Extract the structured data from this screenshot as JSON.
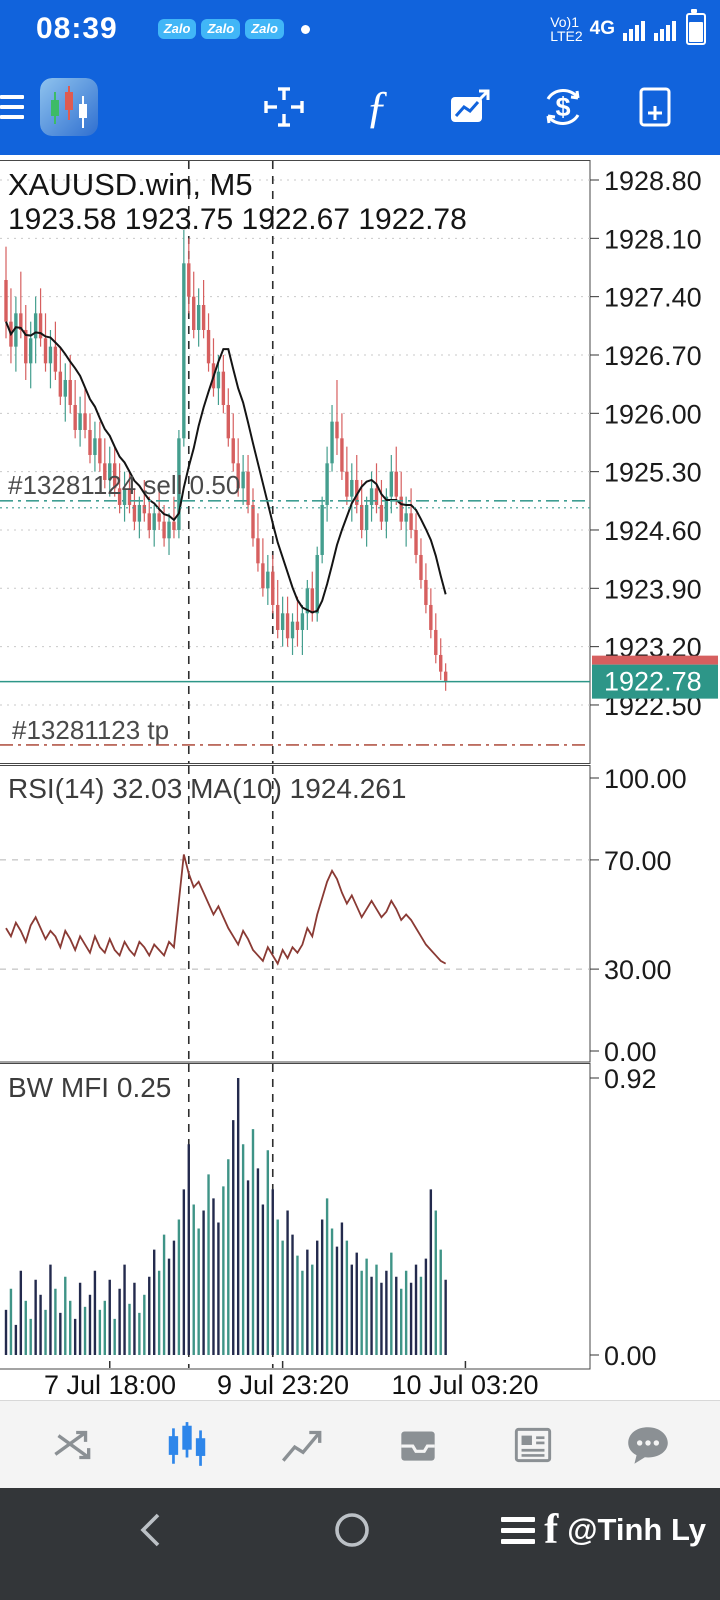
{
  "status_bar": {
    "time": "08:39",
    "zalo_badges": [
      "Zalo",
      "Zalo",
      "Zalo"
    ],
    "carrier_line1": "Vo)1",
    "carrier_line2": "LTE2",
    "network_type": "4G"
  },
  "toolbar": {
    "fx_glyph": "ƒ",
    "dollar_glyph": "$"
  },
  "chart": {
    "symbol": "XAUUSD.win, M5",
    "ohlc_line": "1923.58 1923.75 1922.67 1922.78",
    "open": "1923.58",
    "high": "1923.75",
    "low": "1922.67",
    "close": "1922.78",
    "price_axis": [
      "1928.80",
      "1928.10",
      "1927.40",
      "1926.70",
      "1926.00",
      "1925.30",
      "1924.60",
      "1923.90",
      "1923.20",
      "1922.50"
    ],
    "current_price": "1922.78",
    "position_line": {
      "label": "#13281124 sell 0.50",
      "price": 1924.95
    },
    "tp_line": {
      "label": "#13281123 tp",
      "price": 1922.02
    }
  },
  "rsi_panel": {
    "label": "RSI(14) 32.03 MA(10) 1924.261",
    "axis": [
      "100.00",
      "70.00",
      "30.00",
      "0.00"
    ],
    "levels": [
      70,
      30
    ]
  },
  "mfi_panel": {
    "label": "BW MFI 0.25",
    "axis": [
      "0.92",
      "0.00"
    ]
  },
  "nav_bar": {
    "watermark_logo": "f",
    "watermark": "@Tinh Ly"
  },
  "chart_data": {
    "type": "candlestick",
    "title": "XAUUSD.win, M5",
    "price_axis_top": 1928.8,
    "price_axis_step": 0.7,
    "ma_period": 10,
    "separators": [
      37,
      54
    ],
    "time_labels": [
      {
        "text": "7 Jul 18:00",
        "i": 21
      },
      {
        "text": "9 Jul 23:20",
        "i": 56
      },
      {
        "text": "10 Jul 03:20",
        "i": 93
      }
    ],
    "candles": [
      [
        1927.6,
        1928.0,
        1926.9,
        1927.1
      ],
      [
        1927.1,
        1927.5,
        1926.6,
        1926.8
      ],
      [
        1926.8,
        1927.4,
        1926.5,
        1927.2
      ],
      [
        1927.2,
        1927.7,
        1926.9,
        1927.0
      ],
      [
        1927.0,
        1927.3,
        1926.4,
        1926.6
      ],
      [
        1926.6,
        1927.1,
        1926.3,
        1926.9
      ],
      [
        1926.9,
        1927.4,
        1926.6,
        1927.2
      ],
      [
        1927.2,
        1927.5,
        1926.8,
        1926.9
      ],
      [
        1926.9,
        1927.2,
        1926.5,
        1926.6
      ],
      [
        1926.6,
        1927.0,
        1926.3,
        1926.8
      ],
      [
        1926.8,
        1927.1,
        1926.4,
        1926.5
      ],
      [
        1926.5,
        1926.8,
        1926.1,
        1926.2
      ],
      [
        1926.2,
        1926.6,
        1925.9,
        1926.4
      ],
      [
        1926.4,
        1926.7,
        1926.0,
        1926.1
      ],
      [
        1926.1,
        1926.4,
        1925.7,
        1925.8
      ],
      [
        1925.8,
        1926.2,
        1925.6,
        1926.0
      ],
      [
        1926.0,
        1926.3,
        1925.7,
        1925.8
      ],
      [
        1925.8,
        1926.0,
        1925.4,
        1925.5
      ],
      [
        1925.5,
        1925.9,
        1925.3,
        1925.7
      ],
      [
        1925.7,
        1925.9,
        1925.3,
        1925.4
      ],
      [
        1925.4,
        1925.7,
        1925.1,
        1925.2
      ],
      [
        1925.2,
        1925.6,
        1925.0,
        1925.4
      ],
      [
        1925.4,
        1925.6,
        1925.0,
        1925.1
      ],
      [
        1925.1,
        1925.4,
        1924.8,
        1924.9
      ],
      [
        1924.9,
        1925.3,
        1924.7,
        1925.1
      ],
      [
        1925.1,
        1925.3,
        1924.8,
        1924.9
      ],
      [
        1924.9,
        1925.1,
        1924.6,
        1924.7
      ],
      [
        1924.7,
        1925.0,
        1924.5,
        1924.9
      ],
      [
        1924.9,
        1925.2,
        1924.7,
        1924.8
      ],
      [
        1924.8,
        1925.0,
        1924.5,
        1924.6
      ],
      [
        1924.6,
        1924.9,
        1924.4,
        1924.8
      ],
      [
        1924.8,
        1925.1,
        1924.6,
        1924.7
      ],
      [
        1924.7,
        1924.9,
        1924.4,
        1924.5
      ],
      [
        1924.5,
        1924.8,
        1924.3,
        1924.7
      ],
      [
        1924.7,
        1925.0,
        1924.5,
        1924.6
      ],
      [
        1924.6,
        1925.8,
        1924.5,
        1925.7
      ],
      [
        1925.7,
        1928.2,
        1925.6,
        1927.8
      ],
      [
        1927.8,
        1928.1,
        1927.2,
        1927.4
      ],
      [
        1927.4,
        1927.7,
        1926.9,
        1927.0
      ],
      [
        1927.0,
        1927.5,
        1926.8,
        1927.3
      ],
      [
        1927.3,
        1927.6,
        1926.9,
        1927.0
      ],
      [
        1927.0,
        1927.2,
        1926.5,
        1926.6
      ],
      [
        1926.6,
        1926.9,
        1926.2,
        1926.3
      ],
      [
        1926.3,
        1926.7,
        1926.1,
        1926.5
      ],
      [
        1926.5,
        1926.7,
        1926.0,
        1926.1
      ],
      [
        1926.1,
        1926.3,
        1925.6,
        1925.7
      ],
      [
        1925.7,
        1926.0,
        1925.3,
        1925.4
      ],
      [
        1925.4,
        1925.7,
        1925.0,
        1925.1
      ],
      [
        1925.1,
        1925.5,
        1924.9,
        1925.3
      ],
      [
        1925.3,
        1925.5,
        1924.8,
        1924.9
      ],
      [
        1924.9,
        1925.1,
        1924.4,
        1924.5
      ],
      [
        1924.5,
        1924.8,
        1924.1,
        1924.2
      ],
      [
        1924.2,
        1924.5,
        1923.8,
        1923.9
      ],
      [
        1923.9,
        1924.3,
        1923.7,
        1924.1
      ],
      [
        1924.1,
        1924.3,
        1923.6,
        1923.7
      ],
      [
        1923.7,
        1924.0,
        1923.3,
        1923.4
      ],
      [
        1923.4,
        1923.8,
        1923.2,
        1923.6
      ],
      [
        1923.6,
        1923.8,
        1923.2,
        1923.3
      ],
      [
        1923.3,
        1923.6,
        1923.1,
        1923.5
      ],
      [
        1923.5,
        1923.8,
        1923.2,
        1923.4
      ],
      [
        1923.4,
        1923.7,
        1923.1,
        1923.6
      ],
      [
        1923.6,
        1924.0,
        1923.4,
        1923.9
      ],
      [
        1923.9,
        1924.1,
        1923.5,
        1923.6
      ],
      [
        1923.6,
        1924.4,
        1923.5,
        1924.3
      ],
      [
        1924.3,
        1925.0,
        1924.2,
        1924.9
      ],
      [
        1924.9,
        1925.6,
        1924.7,
        1925.4
      ],
      [
        1925.4,
        1926.1,
        1925.3,
        1925.9
      ],
      [
        1925.9,
        1926.4,
        1925.5,
        1925.7
      ],
      [
        1925.7,
        1926.0,
        1925.2,
        1925.3
      ],
      [
        1925.3,
        1925.6,
        1924.9,
        1925.0
      ],
      [
        1925.0,
        1925.4,
        1924.7,
        1925.2
      ],
      [
        1925.2,
        1925.5,
        1924.8,
        1924.9
      ],
      [
        1924.9,
        1925.2,
        1924.5,
        1924.6
      ],
      [
        1924.6,
        1925.0,
        1924.4,
        1924.9
      ],
      [
        1924.9,
        1925.3,
        1924.7,
        1925.1
      ],
      [
        1925.1,
        1925.4,
        1924.8,
        1924.9
      ],
      [
        1924.9,
        1925.2,
        1924.6,
        1924.7
      ],
      [
        1924.7,
        1925.1,
        1924.5,
        1925.0
      ],
      [
        1925.0,
        1925.5,
        1924.8,
        1925.3
      ],
      [
        1925.3,
        1925.6,
        1924.9,
        1925.0
      ],
      [
        1925.0,
        1925.3,
        1924.6,
        1924.7
      ],
      [
        1924.7,
        1925.0,
        1924.4,
        1924.8
      ],
      [
        1924.8,
        1925.1,
        1924.5,
        1924.6
      ],
      [
        1924.6,
        1924.8,
        1924.2,
        1924.3
      ],
      [
        1924.3,
        1924.5,
        1923.9,
        1924.0
      ],
      [
        1924.0,
        1924.2,
        1923.6,
        1923.7
      ],
      [
        1923.7,
        1923.9,
        1923.3,
        1923.4
      ],
      [
        1923.4,
        1923.6,
        1923.0,
        1923.1
      ],
      [
        1923.1,
        1923.3,
        1922.8,
        1922.9
      ],
      [
        1922.9,
        1923.0,
        1922.67,
        1922.78
      ]
    ],
    "rsi": [
      45,
      42,
      47,
      44,
      40,
      46,
      49,
      45,
      41,
      44,
      42,
      38,
      44,
      41,
      37,
      42,
      39,
      36,
      42,
      38,
      36,
      41,
      37,
      35,
      40,
      37,
      35,
      40,
      38,
      35,
      39,
      37,
      35,
      40,
      38,
      55,
      72,
      65,
      60,
      62,
      58,
      54,
      50,
      53,
      49,
      45,
      42,
      39,
      44,
      41,
      37,
      35,
      33,
      38,
      35,
      32,
      37,
      34,
      38,
      36,
      39,
      45,
      42,
      50,
      56,
      62,
      66,
      63,
      58,
      54,
      57,
      53,
      49,
      52,
      55,
      52,
      49,
      51,
      55,
      52,
      48,
      50,
      48,
      45,
      42,
      39,
      37,
      35,
      33,
      32
    ],
    "mfi": [
      0.15,
      0.22,
      0.1,
      0.28,
      0.18,
      0.12,
      0.25,
      0.2,
      0.15,
      0.3,
      0.22,
      0.14,
      0.26,
      0.18,
      0.12,
      0.24,
      0.16,
      0.2,
      0.28,
      0.15,
      0.18,
      0.25,
      0.12,
      0.22,
      0.3,
      0.17,
      0.24,
      0.14,
      0.2,
      0.26,
      0.35,
      0.28,
      0.4,
      0.32,
      0.38,
      0.45,
      0.55,
      0.7,
      0.5,
      0.42,
      0.48,
      0.6,
      0.52,
      0.44,
      0.56,
      0.65,
      0.78,
      0.92,
      0.7,
      0.58,
      0.75,
      0.62,
      0.5,
      0.68,
      0.55,
      0.45,
      0.38,
      0.48,
      0.4,
      0.33,
      0.28,
      0.35,
      0.3,
      0.38,
      0.45,
      0.52,
      0.42,
      0.36,
      0.44,
      0.38,
      0.3,
      0.34,
      0.28,
      0.32,
      0.26,
      0.3,
      0.24,
      0.28,
      0.34,
      0.26,
      0.22,
      0.28,
      0.24,
      0.3,
      0.26,
      0.32,
      0.55,
      0.48,
      0.35,
      0.25
    ],
    "mfi_colors": "101100110101001101100101101001100110110010110011010110100110010110011011001011010011011001",
    "colors": {
      "up": "#449e8e",
      "down": "#d65f5f",
      "ma_line": "#141414",
      "price_line": "#2d9688",
      "ask_badge": "#d65f5f",
      "sell_line": "#3f9e92",
      "tp_line": "#b35849",
      "rsi_line": "#8a3a34",
      "mfi_navy": "#232a4d",
      "mfi_teal": "#3f9487"
    }
  }
}
